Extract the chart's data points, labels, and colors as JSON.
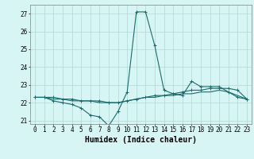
{
  "xlabel": "Humidex (Indice chaleur)",
  "x_values": [
    0,
    1,
    2,
    3,
    4,
    5,
    6,
    7,
    8,
    9,
    10,
    11,
    12,
    13,
    14,
    15,
    16,
    17,
    18,
    19,
    20,
    21,
    22,
    23
  ],
  "line1_y": [
    22.3,
    22.3,
    22.1,
    22.0,
    21.9,
    21.7,
    21.3,
    21.2,
    20.7,
    21.5,
    22.6,
    27.1,
    27.1,
    25.2,
    22.7,
    22.5,
    22.4,
    23.2,
    22.9,
    22.9,
    22.9,
    22.6,
    22.3,
    22.2
  ],
  "line2_y": [
    22.3,
    22.3,
    22.3,
    22.2,
    22.2,
    22.1,
    22.1,
    22.1,
    22.0,
    22.0,
    22.1,
    22.2,
    22.3,
    22.4,
    22.4,
    22.5,
    22.6,
    22.7,
    22.7,
    22.8,
    22.8,
    22.8,
    22.7,
    22.2
  ],
  "line3_y": [
    22.3,
    22.3,
    22.2,
    22.2,
    22.1,
    22.1,
    22.1,
    22.0,
    22.0,
    22.0,
    22.1,
    22.2,
    22.3,
    22.3,
    22.4,
    22.4,
    22.5,
    22.5,
    22.6,
    22.6,
    22.7,
    22.6,
    22.4,
    22.2
  ],
  "line_color": "#1a6b6b",
  "bg_color": "#d8f5f5",
  "grid_color": "#b0d8d8",
  "ylim": [
    20.8,
    27.5
  ],
  "xlim": [
    -0.5,
    23.5
  ],
  "yticks": [
    21,
    22,
    23,
    24,
    25,
    26,
    27
  ],
  "xticks": [
    0,
    1,
    2,
    3,
    4,
    5,
    6,
    7,
    8,
    9,
    10,
    11,
    12,
    13,
    14,
    15,
    16,
    17,
    18,
    19,
    20,
    21,
    22,
    23
  ],
  "marker": "+",
  "markersize": 3,
  "linewidth": 0.8,
  "xlabel_fontsize": 7,
  "tick_fontsize": 5.5
}
